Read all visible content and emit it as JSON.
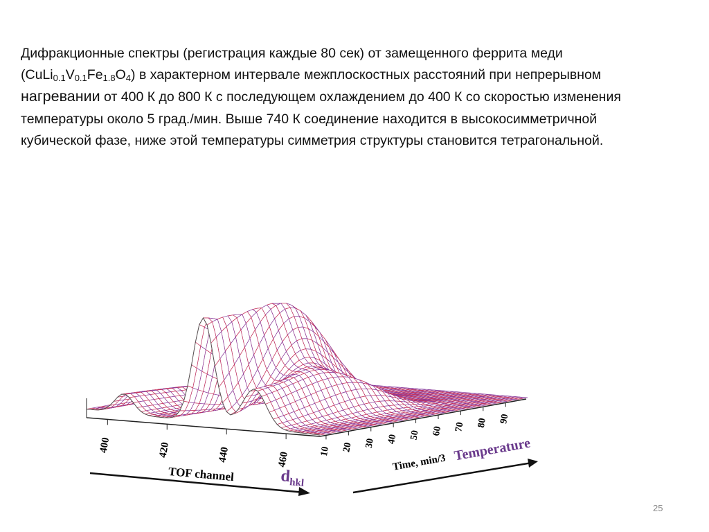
{
  "paragraph": {
    "part1": "Дифракционные спектры (регистрация каждые 80 сек) от замещенного феррита меди (CuLi",
    "sub1": "0.1",
    "part2": "V",
    "sub2": "0.1",
    "part3": "Fe",
    "sub3": "1.8",
    "part4": "O",
    "sub4": "4",
    "part5": ") в характерном интервале межплоскостных расстояний при непрерывном ",
    "emphasis": "нагревании",
    "part6": " от 400 К до 800 К с последующем охлаждением до 400 К со скоростью изменения температуры около 5 град./мин. Выше 740 К соединение находится в высокосимметричной кубической фазе, ниже этой температуры симметрия структуры становится тетрагональной."
  },
  "figure": {
    "tof_ticks": [
      400,
      420,
      440,
      460
    ],
    "time_ticks": [
      10,
      20,
      30,
      40,
      50,
      60,
      70,
      80,
      90
    ],
    "tof_label": "TOF channel",
    "dhkl_label": "d",
    "dhkl_sub": "hkl",
    "time_label": "Time, min/3",
    "temperature_label": "Temperature"
  },
  "page_number": "25"
}
